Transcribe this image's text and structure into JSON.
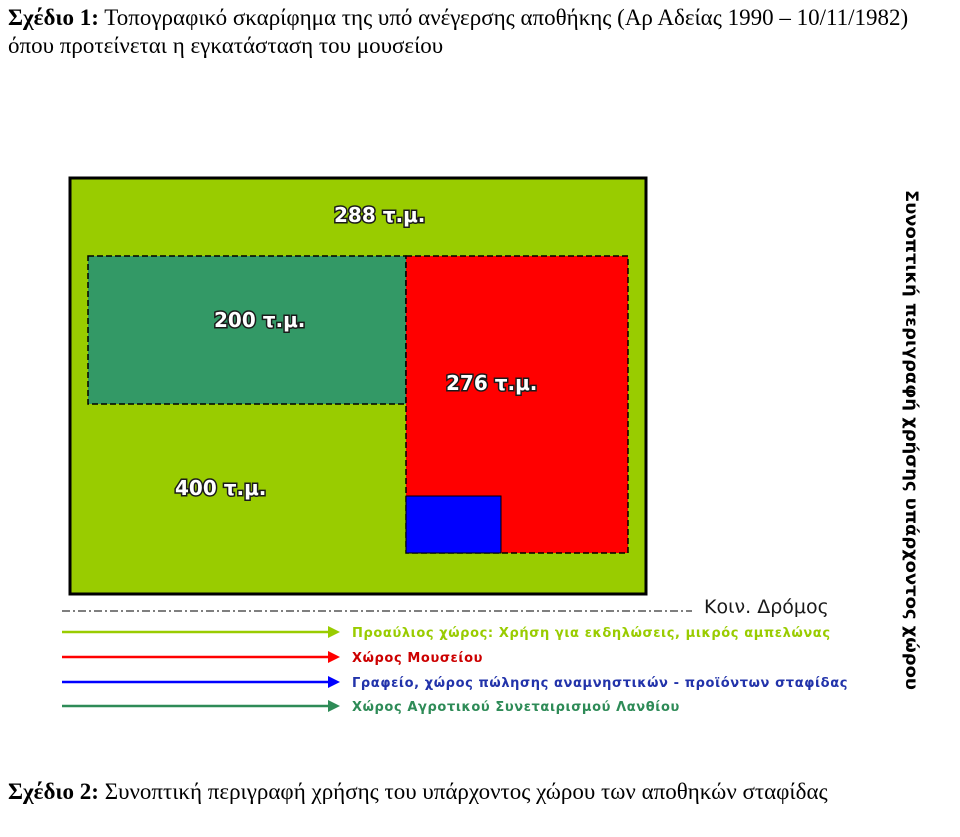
{
  "captions": {
    "top_prefix": "Σχέδιο 1:",
    "top_text": " Τοπογραφικό σκαρίφημα της υπό ανέγερσης αποθήκης (Αρ Αδείας 1990 – 10/11/1982) όπου προτείνεται η εγκατάσταση του μουσείου",
    "bottom_prefix": "Σχέδιο 2:",
    "bottom_text": " Συνοπτική περιγραφή χρήσης του υπάρχοντος χώρου των αποθηκών σταφίδας"
  },
  "areas": {
    "total": "400 τ.μ.",
    "cooperative": "200 τ.μ.",
    "museum": "276 τ.μ.",
    "courtyard": "288 τ.μ."
  },
  "road": {
    "label": "Κοιν. Δρόμος"
  },
  "legend": [
    {
      "text": "Προαύλιος χώρος: Χρήση για εκδηλώσεις, μικρός αμπελώνας",
      "color": "#99cc00"
    },
    {
      "text": "Χώρος Μουσείου",
      "color": "#ff0000"
    },
    {
      "text": "Γραφείο, χώρος πώλησης αναμνηστικών  - προϊόντων σταφίδας",
      "color": "#0000ff"
    },
    {
      "text": "Χώρος Αγροτικού Συνεταιρισμού Λανθίου",
      "color": "#2e8b57"
    }
  ],
  "side_title": "Συνοπτική περιγραφή χρήσης υπάρχοντος χώρου",
  "colors": {
    "site": "#99cc00",
    "cooperative": "#339966",
    "museum": "#ff0000",
    "office": "#0000ff"
  }
}
